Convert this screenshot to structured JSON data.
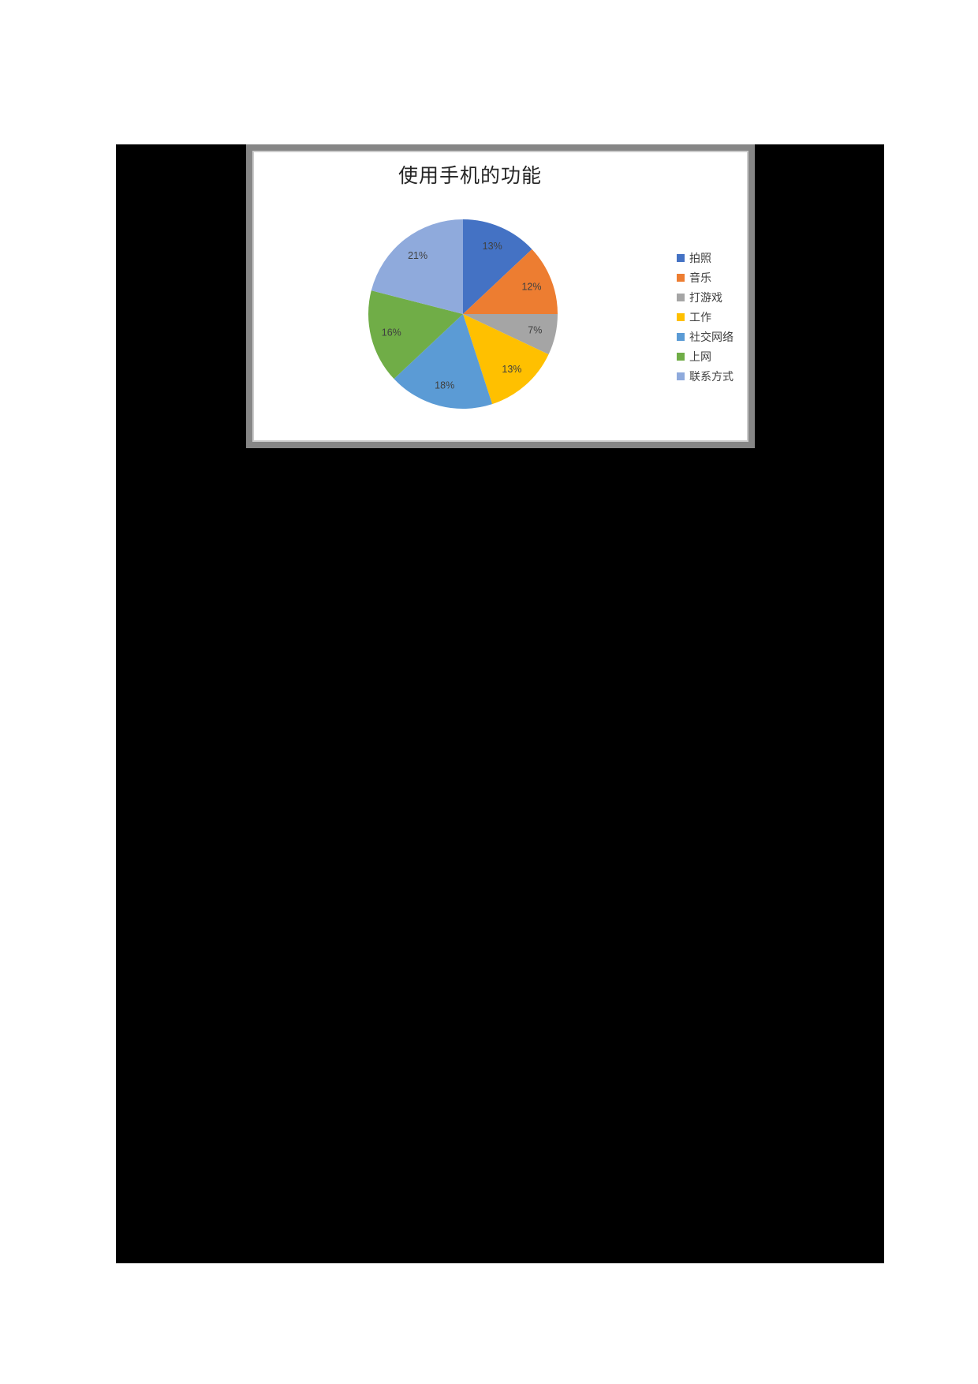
{
  "page": {
    "background_color": "#ffffff",
    "canvas_color": "#000000"
  },
  "chart_panel": {
    "background_color": "#ffffff",
    "border_color": "#868686",
    "inner_line_color": "#cccccc"
  },
  "chart_data": {
    "type": "pie",
    "title": "使用手机的功能",
    "title_color": "#262626",
    "label_color": "#404040",
    "legend_position": "right",
    "series": [
      {
        "name": "拍照",
        "value": 13,
        "label": "13%",
        "color": "#4472C4"
      },
      {
        "name": "音乐",
        "value": 12,
        "label": "12%",
        "color": "#ED7D31"
      },
      {
        "name": "打游戏",
        "value": 7,
        "label": "7%",
        "color": "#A5A5A5"
      },
      {
        "name": "工作",
        "value": 13,
        "label": "13%",
        "color": "#FFC000"
      },
      {
        "name": "社交网络",
        "value": 18,
        "label": "18%",
        "color": "#5B9BD5"
      },
      {
        "name": "上网",
        "value": 16,
        "label": "16%",
        "color": "#70AD47"
      },
      {
        "name": "联系方式",
        "value": 21,
        "label": "21%",
        "color": "#8FAADC"
      }
    ]
  }
}
